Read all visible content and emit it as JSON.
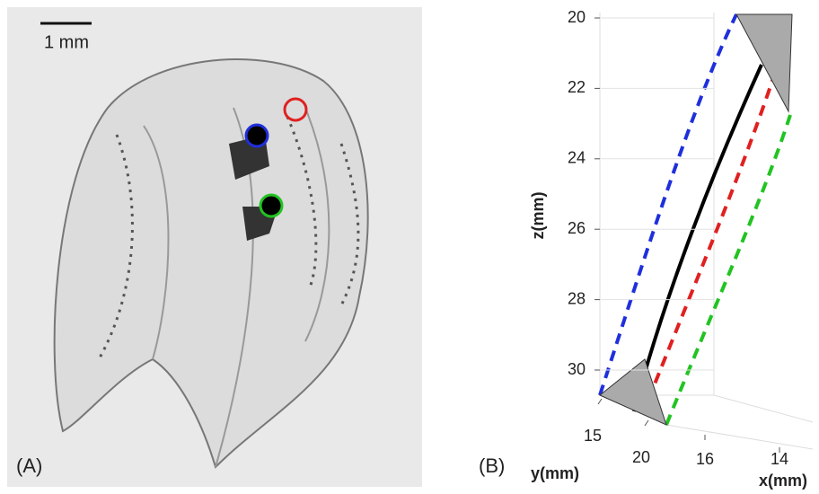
{
  "panel_a": {
    "label": "(A)",
    "scale_bar": "1 mm"
  },
  "chart_data": {
    "type": "trajectory3d",
    "label": "(B)",
    "zlabel": "z(mm)",
    "ylabel": "y(mm)",
    "xlabel": "x(mm)",
    "zlim": [
      20,
      30
    ],
    "zticks": [
      20,
      22,
      24,
      26,
      28,
      30
    ],
    "yticks": [
      15,
      20
    ],
    "xticks": [
      16,
      14
    ]
  }
}
